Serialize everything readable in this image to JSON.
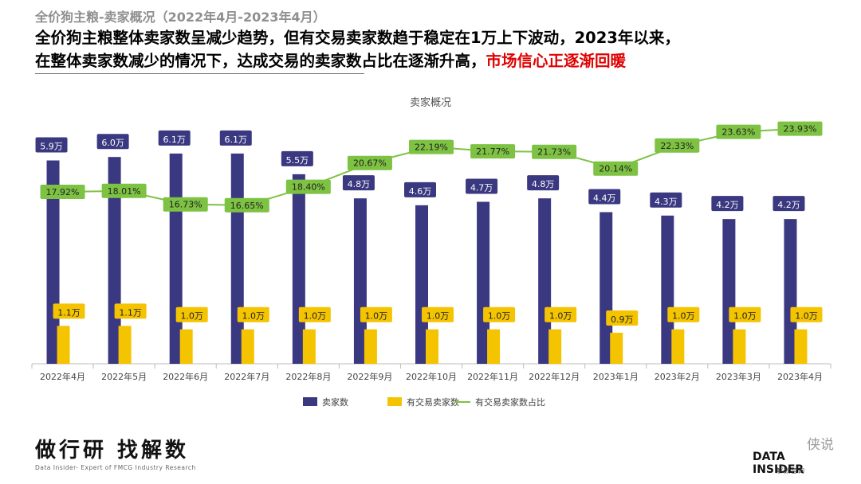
{
  "header": {
    "supertitle": "全价狗主粮-卖家概况（2022年4月-2023年4月）",
    "headline_part1": "全价狗主粮整体卖家数呈减少趋势，但有交易卖家数趋于稳定在1万上下波动，2023年以来，",
    "headline_part2": "在整体卖家数减少的情况下，达成交易的卖家数占比在逐渐升高，",
    "headline_highlight": "市场信心正逐渐回暖"
  },
  "chart_data": {
    "type": "bar",
    "title": "卖家概况",
    "categories": [
      "2022年4月",
      "2022年5月",
      "2022年6月",
      "2022年7月",
      "2022年8月",
      "2022年9月",
      "2022年10月",
      "2022年11月",
      "2022年12月",
      "2023年1月",
      "2023年2月",
      "2023年3月",
      "2023年4月"
    ],
    "series": [
      {
        "name": "卖家数",
        "type": "bar",
        "color": "#3a3880",
        "values": [
          5.9,
          6.0,
          6.1,
          6.1,
          5.5,
          4.8,
          4.6,
          4.7,
          4.8,
          4.4,
          4.3,
          4.2,
          4.2
        ],
        "labels": [
          "5.9万",
          "6.0万",
          "6.1万",
          "6.1万",
          "5.5万",
          "4.8万",
          "4.6万",
          "4.7万",
          "4.8万",
          "4.4万",
          "4.3万",
          "4.2万",
          "4.2万"
        ]
      },
      {
        "name": "有交易卖家数",
        "type": "bar",
        "color": "#f5c400",
        "values": [
          1.1,
          1.1,
          1.0,
          1.0,
          1.0,
          1.0,
          1.0,
          1.0,
          1.0,
          0.9,
          1.0,
          1.0,
          1.0
        ],
        "labels": [
          "1.1万",
          "1.1万",
          "1.0万",
          "1.0万",
          "1.0万",
          "1.0万",
          "1.0万",
          "1.0万",
          "1.0万",
          "0.9万",
          "1.0万",
          "1.0万",
          "1.0万"
        ]
      },
      {
        "name": "有交易卖家数占比",
        "type": "line",
        "color": "#7dc242",
        "values": [
          17.92,
          18.01,
          16.73,
          16.65,
          18.4,
          20.67,
          22.19,
          21.77,
          21.73,
          20.14,
          22.33,
          23.63,
          23.93
        ],
        "labels": [
          "17.92%",
          "18.01%",
          "16.73%",
          "16.65%",
          "18.40%",
          "20.67%",
          "22.19%",
          "21.77%",
          "21.73%",
          "20.14%",
          "22.33%",
          "23.63%",
          "23.93%"
        ]
      }
    ],
    "legend_position": "bottom"
  },
  "footer": {
    "slogan": "做行研 找解数",
    "tagline": "Data Insider- Expert of FMCG Industry Research",
    "watermark": "侠说",
    "brand": "DATA INSIDER",
    "brand_sub": "解数咨询"
  }
}
